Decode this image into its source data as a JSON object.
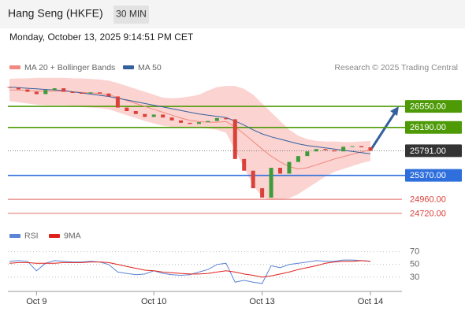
{
  "chart_data": {
    "type": "candlestick",
    "title": "Hang Seng (HKFE)",
    "interval": "30 MIN",
    "subtitle": "Monday, October 13, 2025 9:14:51 PM CET",
    "credit": "Research © 2025 Trading Central",
    "categories": [
      null,
      null,
      null,
      "Oct 9",
      null,
      null,
      null,
      null,
      null,
      null,
      null,
      null,
      null,
      null,
      null,
      null,
      "Oct 10",
      null,
      null,
      null,
      null,
      null,
      null,
      null,
      null,
      null,
      null,
      null,
      "Oct 13",
      null,
      null,
      null,
      null,
      null,
      null,
      null,
      null,
      null,
      null,
      null,
      "Oct 14"
    ],
    "open": [
      26880,
      26870,
      26840,
      26800,
      26760,
      26830,
      26860,
      26800,
      26780,
      26770,
      26790,
      26770,
      26720,
      26530,
      26470,
      26420,
      26370,
      26410,
      26360,
      26310,
      26270,
      26250,
      26280,
      26300,
      26350,
      26330,
      25650,
      25450,
      25150,
      24990,
      25500,
      25400,
      25600,
      25700,
      25780,
      25820,
      25800,
      25780,
      25860,
      25870,
      25850
    ],
    "close": [
      26870,
      26840,
      26800,
      26760,
      26830,
      26860,
      26800,
      26780,
      26770,
      26790,
      26770,
      26720,
      26530,
      26470,
      26420,
      26370,
      26410,
      26360,
      26310,
      26270,
      26250,
      26280,
      26300,
      26350,
      26330,
      25650,
      25450,
      25150,
      24990,
      25500,
      25400,
      25600,
      25700,
      25780,
      25820,
      25800,
      25780,
      25860,
      25870,
      25850,
      25791
    ],
    "up_color": "#3f9b3a",
    "down_color": "#d9413a",
    "series": [
      {
        "name": "MA 20 + Bollinger Bands",
        "color": "#f08a80",
        "values": [
          26830,
          26830,
          26820,
          26810,
          26810,
          26810,
          26810,
          26800,
          26790,
          26780,
          26770,
          26750,
          26700,
          26650,
          26600,
          26550,
          26500,
          26450,
          26400,
          26350,
          26310,
          26290,
          26280,
          26280,
          26290,
          26200,
          26080,
          25950,
          25820,
          25700,
          25600,
          25520,
          25480,
          25500,
          25550,
          25600,
          25650,
          25690,
          25730,
          25770,
          25810
        ]
      },
      {
        "name": "MA 50",
        "color": "#34609e",
        "values": [
          26880,
          26870,
          26860,
          26850,
          26840,
          26830,
          26820,
          26800,
          26780,
          26760,
          26740,
          26720,
          26690,
          26660,
          26630,
          26600,
          26570,
          26540,
          26510,
          26480,
          26450,
          26420,
          26400,
          26380,
          26360,
          26300,
          26230,
          26150,
          26080,
          26030,
          25990,
          25950,
          25910,
          25880,
          25860,
          25840,
          25820,
          25800,
          25780,
          25760,
          25740
        ]
      }
    ],
    "bands_color": "#fbd3d0",
    "bands_upper": [
      27020,
      27030,
      27030,
      27040,
      27040,
      27040,
      27040,
      27030,
      27030,
      27020,
      27010,
      26990,
      26950,
      26900,
      26850,
      26800,
      26750,
      26700,
      26690,
      26700,
      26720,
      26750,
      26820,
      26880,
      26900,
      26900,
      26850,
      26750,
      26600,
      26450,
      26300,
      26150,
      26050,
      25990,
      25960,
      25950,
      25950,
      25940,
      25940,
      25950,
      25960
    ],
    "bands_lower": [
      26640,
      26620,
      26600,
      26580,
      26570,
      26570,
      26570,
      26560,
      26540,
      26530,
      26520,
      26500,
      26450,
      26400,
      26350,
      26300,
      26260,
      26220,
      26200,
      26200,
      26190,
      26180,
      26170,
      26150,
      26100,
      25800,
      25500,
      25200,
      25000,
      24950,
      24960,
      24980,
      25050,
      25150,
      25250,
      25350,
      25430,
      25480,
      25530,
      25580,
      25620
    ],
    "ylim": [
      24530,
      27090
    ],
    "levels": [
      {
        "value": 26550,
        "label": "26550.00",
        "color": "#4e9a06",
        "style": "box",
        "line": "solid"
      },
      {
        "value": 26190,
        "label": "26190.00",
        "color": "#4e9a06",
        "style": "box",
        "line": "solid"
      },
      {
        "value": 25791,
        "label": "25791.00",
        "color": "#333333",
        "style": "box",
        "line": "dotted"
      },
      {
        "value": 25370,
        "label": "25370.00",
        "color": "#2f6fdc",
        "style": "box",
        "line": "solid"
      },
      {
        "value": 24960,
        "label": "24960.00",
        "color": "#d9413a",
        "style": "text",
        "line": "solid"
      },
      {
        "value": 24720,
        "label": "24720.00",
        "color": "#d9413a",
        "style": "text",
        "line": "solid"
      }
    ],
    "rsi": {
      "series": [
        {
          "name": "RSI",
          "color": "#5b84d6",
          "values": [
            55,
            56,
            55,
            40,
            52,
            56,
            55,
            54,
            54,
            55,
            54,
            50,
            38,
            36,
            34,
            35,
            40,
            36,
            34,
            33,
            34,
            38,
            42,
            50,
            52,
            22,
            25,
            22,
            20,
            48,
            45,
            50,
            52,
            54,
            56,
            55,
            55,
            57,
            57,
            56,
            55
          ]
        },
        {
          "name": "9MA",
          "color": "#e0201b",
          "values": [
            52,
            53,
            53,
            52,
            52,
            52,
            53,
            53,
            53,
            54,
            54,
            53,
            50,
            47,
            44,
            41,
            40,
            38,
            37,
            36,
            35,
            35,
            36,
            38,
            40,
            38,
            35,
            33,
            30,
            32,
            35,
            38,
            42,
            45,
            48,
            52,
            54,
            55,
            55,
            56,
            55
          ]
        }
      ],
      "ylim": [
        10,
        82
      ],
      "yticks": [
        70,
        50,
        30
      ],
      "grid": true
    }
  }
}
